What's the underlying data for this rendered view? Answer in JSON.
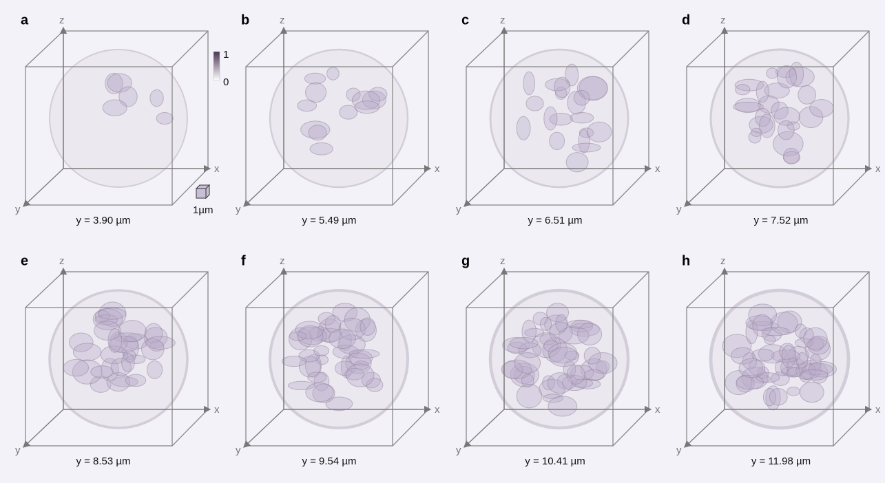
{
  "panels": [
    {
      "label": "a",
      "caption": "y = 3.90 µm"
    },
    {
      "label": "b",
      "caption": "y = 5.49 µm"
    },
    {
      "label": "c",
      "caption": "y = 6.51 µm"
    },
    {
      "label": "d",
      "caption": "y = 7.52 µm"
    },
    {
      "label": "e",
      "caption": "y = 8.53 µm"
    },
    {
      "label": "f",
      "caption": "y = 9.54 µm"
    },
    {
      "label": "g",
      "caption": "y = 10.41 µm"
    },
    {
      "label": "h",
      "caption": "y = 11.98 µm"
    }
  ],
  "axes": {
    "x": "x",
    "y": "y",
    "z": "z"
  },
  "colorbar": {
    "max": "1",
    "min": "0"
  },
  "scale_bar": "1µm"
}
